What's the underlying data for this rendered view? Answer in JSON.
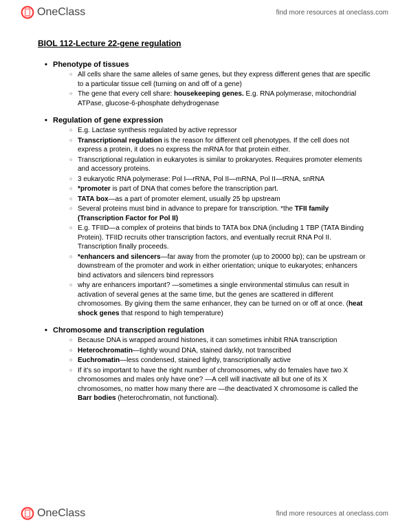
{
  "brand": {
    "one": "One",
    "class": "Class"
  },
  "tagline": "find more resources at oneclass.com",
  "title": "BIOL 112-Lecture 22-gene regulation",
  "sections": [
    {
      "head": "Phenotype of tissues",
      "items": [
        {
          "html": "All cells share the same alleles of same genes, but they express different genes that are specific to a particular tissue cell (turning on and off of a gene)"
        },
        {
          "html": "The gene that every cell share: <b>housekeeping genes.</b> E.g. RNA polymerase, mitochondrial ATPase, glucose-6-phosphate dehydrogenase"
        }
      ]
    },
    {
      "head": "Regulation of gene expression",
      "items": [
        {
          "html": "E.g. Lactase synthesis regulated by active repressor"
        },
        {
          "html": "<b>Transcriptional regulation</b> is the reason for different cell phenotypes. If the cell does not express a protein, it does no express the mRNA for that protein either."
        },
        {
          "html": "Transcriptional regulation in eukaryotes is similar to prokaryotes. Requires promoter elements and accessory proteins."
        },
        {
          "html": "3 eukaryotic RNA polymerase: Pol I—rRNA, Pol II—mRNA, Pol II—tRNA, snRNA"
        },
        {
          "html": "<b>*promoter</b> is part of DNA that comes before the transcription part."
        },
        {
          "html": "<b>TATA box</b>—as a part of promoter element, usually 25 bp upstream"
        },
        {
          "html": "Several proteins must bind in advance to prepare for transcription. *the <b>TFII family (Transcription Factor for Pol II)</b>"
        },
        {
          "html": "E.g. TFIID—a complex of proteins that binds to TATA box DNA (including 1 TBP (TATA Binding Protein). TFIID recruits other transcription factors, and eventually recruit RNA Pol II. Transcription finally proceeds."
        },
        {
          "html": "<b>*enhancers and silencers</b>—far away from the promoter (up to 20000 bp); can be upstream or downstream of the promoter and work in either orientation; unique to eukaryotes; enhancers bind activators and silencers bind repressors"
        },
        {
          "html": "why are enhancers important? —sometimes a single environmental stimulus can result in activation of several genes at the same time, but the genes are scattered in different chromosomes. By giving them the same enhancer, they can be turned on or off at once. (<b>heat shock genes</b> that respond to high temperature)"
        }
      ]
    },
    {
      "head": "Chromosome and transcription regulation",
      "items": [
        {
          "html": "Because DNA is wrapped around histones, it can sometimes inhibit RNA transcription"
        },
        {
          "html": "<b>Heterochromatin</b>—tightly wound DNA, stained darkly, not transcribed"
        },
        {
          "html": "<b>Euchromatin</b>—less condensed, stained lightly, transcriptionally active"
        },
        {
          "html": "If it's so important to have the right number of chromosomes, why do females have two X chromosomes and males only have one? —A cell will inactivate all but one of its X chromosomes, no matter how many there are —the deactivated X chromosome is called the <b>Barr bodies</b> (heterochromatin, not functional)."
        }
      ]
    }
  ]
}
